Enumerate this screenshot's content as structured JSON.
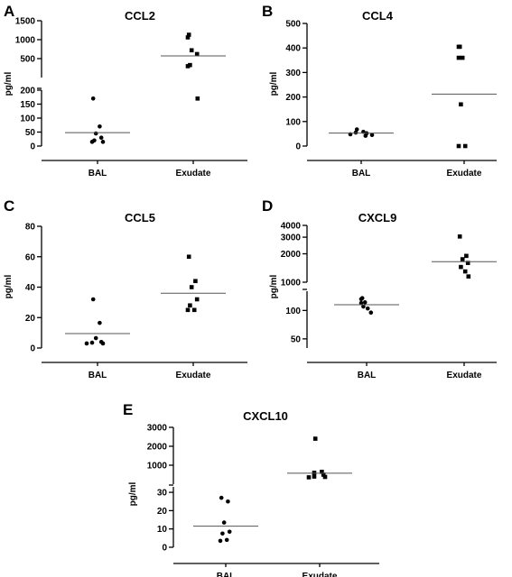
{
  "chart_data": [
    {
      "panel": "A",
      "title": "CCL2",
      "type": "scatter",
      "ylabel": "pg/ml",
      "categories": [
        "BAL",
        "Exudate"
      ],
      "y_axis_segments": [
        {
          "range": [
            0,
            200
          ],
          "ticks": [
            0,
            50,
            100,
            150,
            200
          ]
        },
        {
          "range": [
            0,
            1500
          ],
          "ticks": [
            500,
            1000,
            1500
          ]
        }
      ],
      "series": [
        {
          "category": "BAL",
          "marker": "circle",
          "values": [
            170,
            70,
            45,
            30,
            20,
            15,
            15
          ],
          "mean": 48
        },
        {
          "category": "Exudate",
          "marker": "square",
          "values": [
            1130,
            1060,
            720,
            620,
            330,
            300,
            170
          ],
          "mean": 570
        }
      ]
    },
    {
      "panel": "B",
      "title": "CCL4",
      "type": "scatter",
      "ylabel": "pg/ml",
      "categories": [
        "BAL",
        "Exudate"
      ],
      "y_axis_segments": [
        {
          "range": [
            0,
            500
          ],
          "ticks": [
            0,
            100,
            200,
            300,
            400,
            500
          ]
        }
      ],
      "series": [
        {
          "category": "BAL",
          "marker": "circle",
          "values": [
            68,
            58,
            55,
            52,
            48,
            45,
            42
          ],
          "mean": 53
        },
        {
          "category": "Exudate",
          "marker": "square",
          "values": [
            405,
            405,
            360,
            360,
            170,
            0,
            0
          ],
          "mean": 212
        }
      ]
    },
    {
      "panel": "C",
      "title": "CCL5",
      "type": "scatter",
      "ylabel": "pg/ml",
      "categories": [
        "BAL",
        "Exudate"
      ],
      "y_axis_segments": [
        {
          "range": [
            0,
            80
          ],
          "ticks": [
            0,
            20,
            40,
            60,
            80
          ]
        }
      ],
      "series": [
        {
          "category": "BAL",
          "marker": "circle",
          "values": [
            32,
            16.5,
            6.5,
            4,
            3.5,
            3,
            3
          ],
          "mean": 9.5
        },
        {
          "category": "Exudate",
          "marker": "square",
          "values": [
            60,
            44,
            40,
            32,
            28,
            25,
            25
          ],
          "mean": 36
        }
      ]
    },
    {
      "panel": "D",
      "title": "CXCL9",
      "type": "scatter",
      "ylabel": "pg/ml",
      "categories": [
        "BAL",
        "Exudate"
      ],
      "y_axis_segments": [
        {
          "range": [
            40,
            160
          ],
          "ticks": [
            50,
            100
          ]
        },
        {
          "range": [
            1000,
            4000
          ],
          "ticks": [
            1000,
            2000,
            3000,
            4000
          ]
        }
      ],
      "series": [
        {
          "category": "BAL",
          "marker": "circle",
          "values": [
            135,
            132,
            122,
            120,
            110,
            105,
            95
          ],
          "mean": 115
        },
        {
          "category": "Exudate",
          "marker": "square",
          "values": [
            3050,
            1900,
            1750,
            1600,
            1450,
            1300,
            1150
          ],
          "mean": 1650
        }
      ]
    },
    {
      "panel": "E",
      "title": "CXCL10",
      "type": "scatter",
      "ylabel": "pg/ml",
      "categories": [
        "BAL",
        "Exudate"
      ],
      "y_axis_segments": [
        {
          "range": [
            0,
            33
          ],
          "ticks": [
            0,
            10,
            20,
            30
          ]
        },
        {
          "range": [
            0,
            3000
          ],
          "ticks": [
            1000,
            2000,
            3000
          ]
        }
      ],
      "series": [
        {
          "category": "BAL",
          "marker": "circle",
          "values": [
            27,
            25,
            13.5,
            8.5,
            7.5,
            4,
            3.5
          ],
          "mean": 11.5
        },
        {
          "category": "Exudate",
          "marker": "square",
          "values": [
            2400,
            650,
            600,
            500,
            400,
            380,
            360
          ],
          "mean": 580
        }
      ]
    }
  ]
}
